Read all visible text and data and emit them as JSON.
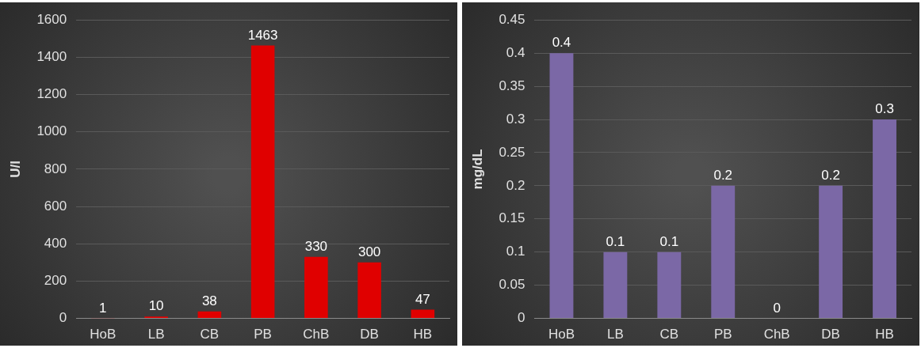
{
  "chart_data": [
    {
      "type": "bar",
      "categories": [
        "HoB",
        "LB",
        "CB",
        "PB",
        "ChB",
        "DB",
        "HB"
      ],
      "ylabel": "U/l",
      "color": "#e00000",
      "values": [
        1,
        10,
        38,
        1463,
        330,
        300,
        47
      ],
      "ylim": [
        0,
        1600
      ],
      "yticks": [
        0,
        200,
        400,
        600,
        800,
        1000,
        1200,
        1400,
        1600
      ],
      "grid": "y",
      "data_labels": true
    },
    {
      "type": "bar",
      "categories": [
        "HoB",
        "LB",
        "CB",
        "PB",
        "ChB",
        "DB",
        "HB"
      ],
      "ylabel": "mg/dL",
      "color": "#7b68a6",
      "values": [
        0.4,
        0.1,
        0.1,
        0.2,
        0,
        0.2,
        0.3
      ],
      "ylim": [
        0,
        0.45
      ],
      "yticks": [
        0,
        0.05,
        0.1,
        0.15,
        0.2,
        0.25,
        0.3,
        0.35,
        0.4,
        0.45
      ],
      "grid": "y",
      "data_labels": true
    }
  ]
}
